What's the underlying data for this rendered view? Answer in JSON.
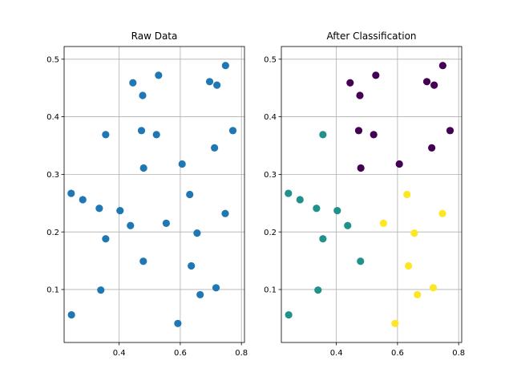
{
  "chart_data": [
    {
      "type": "scatter",
      "title": "Raw Data",
      "xlim": [
        0.22,
        0.81
      ],
      "ylim": [
        0.008,
        0.522
      ],
      "xticks": [
        0.4,
        0.6,
        0.8
      ],
      "yticks": [
        0.1,
        0.2,
        0.3,
        0.4,
        0.5
      ],
      "xtick_labels": [
        "0.4",
        "0.6",
        "0.8"
      ],
      "ytick_labels": [
        "0.1",
        "0.2",
        "0.3",
        "0.4",
        "0.5"
      ],
      "grid": true,
      "colors": {
        "default": "#1f77b4"
      },
      "points": [
        {
          "x": 0.243,
          "y": 0.267
        },
        {
          "x": 0.281,
          "y": 0.256
        },
        {
          "x": 0.244,
          "y": 0.056
        },
        {
          "x": 0.335,
          "y": 0.241
        },
        {
          "x": 0.34,
          "y": 0.099
        },
        {
          "x": 0.356,
          "y": 0.369
        },
        {
          "x": 0.356,
          "y": 0.188
        },
        {
          "x": 0.403,
          "y": 0.237
        },
        {
          "x": 0.437,
          "y": 0.211
        },
        {
          "x": 0.445,
          "y": 0.459
        },
        {
          "x": 0.473,
          "y": 0.376
        },
        {
          "x": 0.477,
          "y": 0.437
        },
        {
          "x": 0.48,
          "y": 0.311
        },
        {
          "x": 0.479,
          "y": 0.149
        },
        {
          "x": 0.522,
          "y": 0.369
        },
        {
          "x": 0.529,
          "y": 0.472
        },
        {
          "x": 0.554,
          "y": 0.215
        },
        {
          "x": 0.592,
          "y": 0.041
        },
        {
          "x": 0.606,
          "y": 0.318
        },
        {
          "x": 0.631,
          "y": 0.265
        },
        {
          "x": 0.636,
          "y": 0.141
        },
        {
          "x": 0.655,
          "y": 0.198
        },
        {
          "x": 0.665,
          "y": 0.091
        },
        {
          "x": 0.696,
          "y": 0.461
        },
        {
          "x": 0.712,
          "y": 0.346
        },
        {
          "x": 0.717,
          "y": 0.103
        },
        {
          "x": 0.72,
          "y": 0.455
        },
        {
          "x": 0.747,
          "y": 0.232
        },
        {
          "x": 0.748,
          "y": 0.489
        },
        {
          "x": 0.772,
          "y": 0.376
        }
      ]
    },
    {
      "type": "scatter",
      "title": "After Classification",
      "xlim": [
        0.22,
        0.81
      ],
      "ylim": [
        0.008,
        0.522
      ],
      "xticks": [
        0.4,
        0.6,
        0.8
      ],
      "yticks": [
        0.1,
        0.2,
        0.3,
        0.4,
        0.5
      ],
      "xtick_labels": [
        "0.4",
        "0.6",
        "0.8"
      ],
      "ytick_labels": [
        "0.1",
        "0.2",
        "0.3",
        "0.4",
        "0.5"
      ],
      "grid": true,
      "colors": {
        "0": "#440154",
        "1": "#21918c",
        "2": "#fde725"
      },
      "points": [
        {
          "x": 0.243,
          "y": 0.267,
          "cls": 1
        },
        {
          "x": 0.281,
          "y": 0.256,
          "cls": 1
        },
        {
          "x": 0.244,
          "y": 0.056,
          "cls": 1
        },
        {
          "x": 0.335,
          "y": 0.241,
          "cls": 1
        },
        {
          "x": 0.34,
          "y": 0.099,
          "cls": 1
        },
        {
          "x": 0.356,
          "y": 0.369,
          "cls": 1
        },
        {
          "x": 0.356,
          "y": 0.188,
          "cls": 1
        },
        {
          "x": 0.403,
          "y": 0.237,
          "cls": 1
        },
        {
          "x": 0.437,
          "y": 0.211,
          "cls": 1
        },
        {
          "x": 0.445,
          "y": 0.459,
          "cls": 0
        },
        {
          "x": 0.473,
          "y": 0.376,
          "cls": 0
        },
        {
          "x": 0.477,
          "y": 0.437,
          "cls": 0
        },
        {
          "x": 0.48,
          "y": 0.311,
          "cls": 0
        },
        {
          "x": 0.479,
          "y": 0.149,
          "cls": 1
        },
        {
          "x": 0.522,
          "y": 0.369,
          "cls": 0
        },
        {
          "x": 0.529,
          "y": 0.472,
          "cls": 0
        },
        {
          "x": 0.554,
          "y": 0.215,
          "cls": 2
        },
        {
          "x": 0.592,
          "y": 0.041,
          "cls": 2
        },
        {
          "x": 0.606,
          "y": 0.318,
          "cls": 0
        },
        {
          "x": 0.631,
          "y": 0.265,
          "cls": 2
        },
        {
          "x": 0.636,
          "y": 0.141,
          "cls": 2
        },
        {
          "x": 0.655,
          "y": 0.198,
          "cls": 2
        },
        {
          "x": 0.665,
          "y": 0.091,
          "cls": 2
        },
        {
          "x": 0.696,
          "y": 0.461,
          "cls": 0
        },
        {
          "x": 0.712,
          "y": 0.346,
          "cls": 0
        },
        {
          "x": 0.717,
          "y": 0.103,
          "cls": 2
        },
        {
          "x": 0.72,
          "y": 0.455,
          "cls": 0
        },
        {
          "x": 0.747,
          "y": 0.232,
          "cls": 2
        },
        {
          "x": 0.748,
          "y": 0.489,
          "cls": 0
        },
        {
          "x": 0.772,
          "y": 0.376,
          "cls": 0
        }
      ]
    }
  ]
}
